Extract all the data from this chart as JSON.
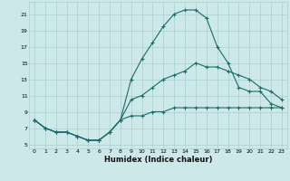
{
  "xlabel": "Humidex (Indice chaleur)",
  "bg_color": "#cce8e8",
  "grid_color": "#aacfcf",
  "line_color": "#1a6b6b",
  "xlim": [
    -0.5,
    23.5
  ],
  "ylim": [
    4.5,
    22.5
  ],
  "yticks": [
    5,
    7,
    9,
    11,
    13,
    15,
    17,
    19,
    21
  ],
  "xticks": [
    0,
    1,
    2,
    3,
    4,
    5,
    6,
    7,
    8,
    9,
    10,
    11,
    12,
    13,
    14,
    15,
    16,
    17,
    18,
    19,
    20,
    21,
    22,
    23
  ],
  "line1_x": [
    0,
    1,
    2,
    3,
    4,
    5,
    6,
    7,
    8,
    9,
    10,
    11,
    12,
    13,
    14,
    15,
    16,
    17,
    18,
    19,
    20,
    21,
    22,
    23
  ],
  "line1_y": [
    8.0,
    7.0,
    6.5,
    6.5,
    6.0,
    5.5,
    5.5,
    6.5,
    8.0,
    13.0,
    15.5,
    17.5,
    19.5,
    21.0,
    21.5,
    21.5,
    20.5,
    17.0,
    15.0,
    12.0,
    11.5,
    11.5,
    10.0,
    9.5
  ],
  "line2_x": [
    0,
    1,
    2,
    3,
    4,
    5,
    6,
    7,
    8,
    9,
    10,
    11,
    12,
    13,
    14,
    15,
    16,
    17,
    18,
    19,
    20,
    21,
    22,
    23
  ],
  "line2_y": [
    8.0,
    7.0,
    6.5,
    6.5,
    6.0,
    5.5,
    5.5,
    6.5,
    8.0,
    10.5,
    11.0,
    12.0,
    13.0,
    13.5,
    14.0,
    15.0,
    14.5,
    14.5,
    14.0,
    13.5,
    13.0,
    12.0,
    11.5,
    10.5
  ],
  "line3_x": [
    0,
    1,
    2,
    3,
    4,
    5,
    6,
    7,
    8,
    9,
    10,
    11,
    12,
    13,
    14,
    15,
    16,
    17,
    18,
    19,
    20,
    21,
    22,
    23
  ],
  "line3_y": [
    8.0,
    7.0,
    6.5,
    6.5,
    6.0,
    5.5,
    5.5,
    6.5,
    8.0,
    8.5,
    8.5,
    9.0,
    9.0,
    9.5,
    9.5,
    9.5,
    9.5,
    9.5,
    9.5,
    9.5,
    9.5,
    9.5,
    9.5,
    9.5
  ]
}
